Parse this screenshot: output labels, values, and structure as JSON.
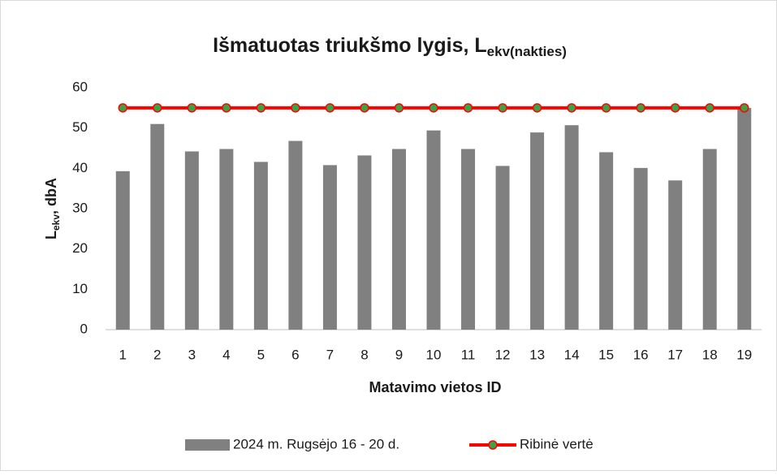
{
  "chart_data": {
    "type": "bar",
    "title": "Išmatuotas triukšmo lygis, L",
    "title_subscript": "ekv(nakties)",
    "ylabel": [
      "L",
      "ekv",
      ", dbA"
    ],
    "xlabel": "Matavimo vietos ID",
    "categories": [
      "1",
      "2",
      "3",
      "4",
      "5",
      "6",
      "7",
      "8",
      "9",
      "10",
      "11",
      "12",
      "13",
      "14",
      "15",
      "16",
      "17",
      "18",
      "19"
    ],
    "series": [
      {
        "name": "2024 m. Rugsėjo 16 - 20 d.",
        "type": "bar",
        "color": "#808080",
        "values": [
          39.3,
          51,
          44.2,
          44.8,
          41.6,
          46.8,
          40.8,
          43.2,
          44.8,
          49.4,
          44.8,
          40.6,
          48.9,
          50.7,
          44,
          40.1,
          37,
          44.8,
          55
        ]
      },
      {
        "name": "Ribinė vertė",
        "type": "line",
        "color": "#ff0000",
        "marker_color": "#3aa445",
        "values": [
          55,
          55,
          55,
          55,
          55,
          55,
          55,
          55,
          55,
          55,
          55,
          55,
          55,
          55,
          55,
          55,
          55,
          55,
          55
        ]
      }
    ],
    "ylim": [
      0,
      60
    ],
    "yticks": [
      0,
      10,
      20,
      30,
      40,
      50,
      60
    ],
    "grid": false,
    "legend": "bottom"
  }
}
